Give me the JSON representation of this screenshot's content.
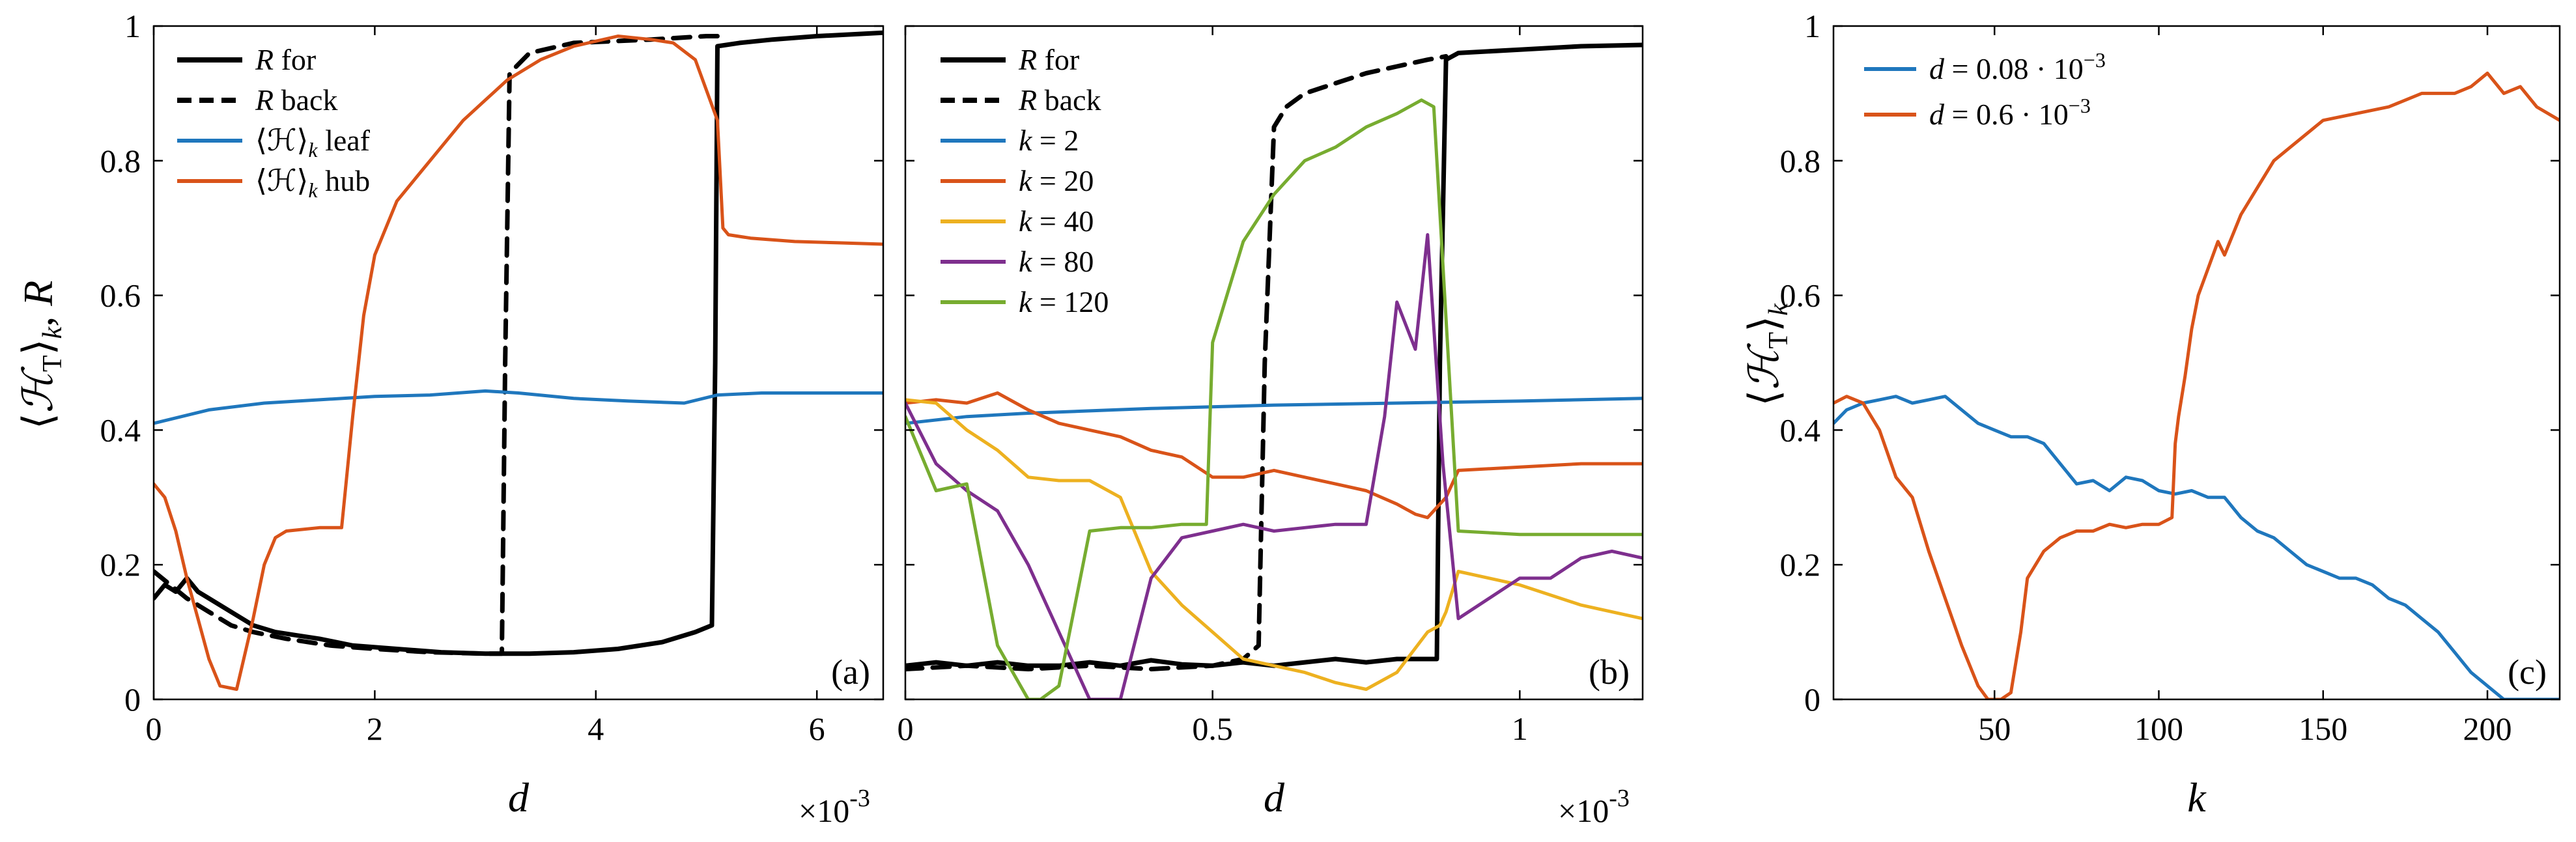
{
  "figure": {
    "description_labels": [
      "(a)",
      "(b)",
      "(c)"
    ]
  },
  "chart_data": [
    {
      "id": "a",
      "type": "line",
      "panel_label": "(a)",
      "xlabel": "d",
      "ylabel": "⟨H_T⟩_k, R",
      "x_multiplier": "×10^-3",
      "xlim": [
        0,
        6.6
      ],
      "ylim": [
        0,
        1
      ],
      "xticks": [
        0,
        2,
        4,
        6
      ],
      "xtick_labels": [
        "0",
        "2",
        "4",
        "6"
      ],
      "yticks": [
        0,
        0.2,
        0.4,
        0.6,
        0.8,
        1
      ],
      "ytick_labels": [
        "0",
        "0.2",
        "0.4",
        "0.6",
        "0.8",
        "1"
      ],
      "legend_position": "top-left",
      "series": [
        {
          "name": "R for",
          "legend_main": "R",
          "legend_rest": " for",
          "color": "#000000",
          "dash": "solid",
          "width": 7,
          "x": [
            0,
            0.1,
            0.2,
            0.3,
            0.4,
            0.5,
            0.7,
            0.9,
            1.1,
            1.3,
            1.5,
            1.8,
            2.2,
            2.6,
            3.0,
            3.4,
            3.8,
            4.2,
            4.6,
            4.9,
            5.05,
            5.08,
            5.1,
            5.3,
            5.6,
            6.0,
            6.6
          ],
          "y": [
            0.15,
            0.17,
            0.16,
            0.18,
            0.16,
            0.15,
            0.13,
            0.11,
            0.1,
            0.095,
            0.09,
            0.08,
            0.075,
            0.07,
            0.068,
            0.068,
            0.07,
            0.075,
            0.085,
            0.1,
            0.11,
            0.5,
            0.97,
            0.975,
            0.98,
            0.985,
            0.99
          ]
        },
        {
          "name": "R back",
          "legend_main": "R",
          "legend_rest": " back",
          "color": "#000000",
          "dash": "dashed",
          "width": 7,
          "x": [
            0,
            0.15,
            0.3,
            0.5,
            0.7,
            0.9,
            1.2,
            1.6,
            2.0,
            2.5,
            3.0,
            3.15,
            3.18,
            3.22,
            3.4,
            3.8,
            4.5,
            5.0,
            5.1
          ],
          "y": [
            0.19,
            0.17,
            0.15,
            0.13,
            0.11,
            0.1,
            0.09,
            0.08,
            0.075,
            0.07,
            0.068,
            0.068,
            0.5,
            0.93,
            0.96,
            0.975,
            0.98,
            0.985,
            0.985
          ]
        },
        {
          "name": "⟨H⟩k leaf",
          "legend_main": "⟨ℋ⟩",
          "legend_sub": "k",
          "legend_rest": " leaf",
          "color": "#1f77bd",
          "dash": "solid",
          "width": 5,
          "x": [
            0,
            0.5,
            1.0,
            1.5,
            2.0,
            2.5,
            3.0,
            3.3,
            3.8,
            4.3,
            4.8,
            5.1,
            5.5,
            6.0,
            6.6
          ],
          "y": [
            0.41,
            0.43,
            0.44,
            0.445,
            0.45,
            0.452,
            0.458,
            0.455,
            0.447,
            0.443,
            0.44,
            0.452,
            0.455,
            0.455,
            0.455
          ]
        },
        {
          "name": "⟨H⟩k hub",
          "legend_main": "⟨ℋ⟩",
          "legend_sub": "k",
          "legend_rest": " hub",
          "color": "#d95319",
          "dash": "solid",
          "width": 5,
          "x": [
            0,
            0.1,
            0.2,
            0.3,
            0.4,
            0.5,
            0.6,
            0.75,
            0.8,
            0.9,
            1.0,
            1.1,
            1.2,
            1.5,
            1.7,
            1.8,
            1.9,
            2.0,
            2.2,
            2.5,
            2.8,
            3.0,
            3.2,
            3.5,
            3.8,
            4.2,
            4.5,
            4.7,
            4.9,
            5.1,
            5.15,
            5.2,
            5.4,
            5.8,
            6.2,
            6.6
          ],
          "y": [
            0.32,
            0.3,
            0.25,
            0.18,
            0.12,
            0.06,
            0.02,
            0.015,
            0.05,
            0.12,
            0.2,
            0.24,
            0.25,
            0.255,
            0.255,
            0.42,
            0.57,
            0.66,
            0.74,
            0.8,
            0.86,
            0.89,
            0.92,
            0.95,
            0.97,
            0.985,
            0.98,
            0.975,
            0.95,
            0.86,
            0.7,
            0.69,
            0.685,
            0.68,
            0.678,
            0.676
          ]
        }
      ]
    },
    {
      "id": "b",
      "type": "line",
      "panel_label": "(b)",
      "xlabel": "d",
      "x_multiplier": "×10^-3",
      "xlim": [
        0,
        1.2
      ],
      "ylim": [
        0,
        1
      ],
      "xticks": [
        0,
        0.5,
        1
      ],
      "xtick_labels": [
        "0",
        "0.5",
        "1"
      ],
      "yticks": [
        0,
        0.2,
        0.4,
        0.6,
        0.8,
        1
      ],
      "legend_position": "top-left",
      "series": [
        {
          "name": "R for",
          "legend_main": "R",
          "legend_rest": " for",
          "color": "#000000",
          "dash": "solid",
          "width": 7,
          "x": [
            0,
            0.05,
            0.1,
            0.15,
            0.2,
            0.25,
            0.3,
            0.35,
            0.4,
            0.45,
            0.5,
            0.55,
            0.6,
            0.65,
            0.7,
            0.75,
            0.8,
            0.85,
            0.865,
            0.87,
            0.88,
            0.9,
            1.0,
            1.1,
            1.2
          ],
          "y": [
            0.05,
            0.055,
            0.05,
            0.055,
            0.05,
            0.05,
            0.055,
            0.05,
            0.058,
            0.052,
            0.05,
            0.055,
            0.05,
            0.055,
            0.06,
            0.055,
            0.06,
            0.06,
            0.06,
            0.5,
            0.95,
            0.96,
            0.965,
            0.97,
            0.972
          ]
        },
        {
          "name": "R back",
          "legend_main": "R",
          "legend_rest": " back",
          "color": "#000000",
          "dash": "dashed",
          "width": 7,
          "x": [
            0,
            0.1,
            0.2,
            0.3,
            0.4,
            0.5,
            0.55,
            0.575,
            0.585,
            0.6,
            0.62,
            0.65,
            0.7,
            0.75,
            0.8,
            0.85,
            0.88
          ],
          "y": [
            0.045,
            0.05,
            0.045,
            0.05,
            0.045,
            0.05,
            0.06,
            0.08,
            0.5,
            0.85,
            0.88,
            0.9,
            0.915,
            0.93,
            0.94,
            0.95,
            0.955
          ]
        },
        {
          "name": "k = 2",
          "legend_main": "k",
          "legend_rest": " = 2",
          "color": "#1f77bd",
          "dash": "solid",
          "width": 5,
          "x": [
            0,
            0.1,
            0.2,
            0.4,
            0.6,
            0.8,
            1.0,
            1.2
          ],
          "y": [
            0.41,
            0.42,
            0.425,
            0.432,
            0.437,
            0.44,
            0.443,
            0.447
          ]
        },
        {
          "name": "k = 20",
          "legend_main": "k",
          "legend_rest": " = 20",
          "color": "#d95319",
          "dash": "solid",
          "width": 5,
          "x": [
            0,
            0.05,
            0.1,
            0.15,
            0.2,
            0.25,
            0.3,
            0.35,
            0.4,
            0.45,
            0.5,
            0.55,
            0.6,
            0.65,
            0.7,
            0.75,
            0.8,
            0.83,
            0.85,
            0.88,
            0.9,
            1.0,
            1.1,
            1.2
          ],
          "y": [
            0.44,
            0.445,
            0.44,
            0.455,
            0.43,
            0.41,
            0.4,
            0.39,
            0.37,
            0.36,
            0.33,
            0.33,
            0.34,
            0.33,
            0.32,
            0.31,
            0.29,
            0.275,
            0.27,
            0.3,
            0.34,
            0.345,
            0.35,
            0.35
          ]
        },
        {
          "name": "k = 40",
          "legend_main": "k",
          "legend_rest": " = 40",
          "color": "#edb120",
          "dash": "solid",
          "width": 5,
          "x": [
            0,
            0.05,
            0.1,
            0.15,
            0.2,
            0.25,
            0.3,
            0.35,
            0.4,
            0.45,
            0.5,
            0.55,
            0.6,
            0.65,
            0.7,
            0.75,
            0.8,
            0.85,
            0.87,
            0.88,
            0.9,
            1.0,
            1.1,
            1.2
          ],
          "y": [
            0.445,
            0.44,
            0.4,
            0.37,
            0.33,
            0.325,
            0.325,
            0.3,
            0.19,
            0.14,
            0.1,
            0.06,
            0.05,
            0.04,
            0.025,
            0.015,
            0.04,
            0.1,
            0.11,
            0.13,
            0.19,
            0.17,
            0.14,
            0.12
          ]
        },
        {
          "name": "k = 80",
          "legend_main": "k",
          "legend_rest": " = 80",
          "color": "#7e2f8e",
          "dash": "solid",
          "width": 5,
          "x": [
            0,
            0.05,
            0.1,
            0.15,
            0.2,
            0.25,
            0.3,
            0.35,
            0.4,
            0.45,
            0.5,
            0.55,
            0.6,
            0.65,
            0.7,
            0.75,
            0.78,
            0.8,
            0.83,
            0.85,
            0.875,
            0.9,
            0.95,
            1.0,
            1.05,
            1.1,
            1.15,
            1.2
          ],
          "y": [
            0.44,
            0.35,
            0.31,
            0.28,
            0.2,
            0.1,
            0.0,
            0.0,
            0.18,
            0.24,
            0.25,
            0.26,
            0.25,
            0.255,
            0.26,
            0.26,
            0.42,
            0.59,
            0.52,
            0.69,
            0.35,
            0.12,
            0.15,
            0.18,
            0.18,
            0.21,
            0.22,
            0.21
          ]
        },
        {
          "name": "k = 120",
          "legend_main": "k",
          "legend_rest": " = 120",
          "color": "#77ac30",
          "dash": "solid",
          "width": 5,
          "x": [
            0,
            0.05,
            0.1,
            0.15,
            0.2,
            0.22,
            0.25,
            0.3,
            0.35,
            0.4,
            0.45,
            0.49,
            0.5,
            0.55,
            0.6,
            0.65,
            0.7,
            0.75,
            0.8,
            0.84,
            0.86,
            0.9,
            1.0,
            1.1,
            1.2
          ],
          "y": [
            0.42,
            0.31,
            0.32,
            0.08,
            0.0,
            0.0,
            0.02,
            0.25,
            0.255,
            0.255,
            0.26,
            0.26,
            0.53,
            0.68,
            0.75,
            0.8,
            0.82,
            0.85,
            0.87,
            0.89,
            0.88,
            0.25,
            0.245,
            0.245,
            0.245
          ]
        }
      ]
    },
    {
      "id": "c",
      "type": "line",
      "panel_label": "(c)",
      "xlabel": "k",
      "ylabel": "⟨H_T⟩_k",
      "xlim": [
        1,
        222
      ],
      "ylim": [
        0,
        1
      ],
      "xticks": [
        50,
        100,
        150,
        200
      ],
      "xtick_labels": [
        "50",
        "100",
        "150",
        "200"
      ],
      "yticks": [
        0,
        0.2,
        0.4,
        0.6,
        0.8,
        1
      ],
      "ytick_labels": [
        "0",
        "0.2",
        "0.4",
        "0.6",
        "0.8",
        "1"
      ],
      "legend_position": "top-left",
      "series": [
        {
          "name": "d = 0.08·10^-3",
          "legend_main": "d",
          "legend_rest": " = 0.08 · 10",
          "legend_sup": "−3",
          "color": "#1f77bd",
          "dash": "solid",
          "width": 5,
          "x": [
            1,
            5,
            10,
            15,
            20,
            25,
            30,
            35,
            40,
            45,
            50,
            55,
            60,
            65,
            70,
            75,
            80,
            85,
            90,
            95,
            100,
            105,
            110,
            115,
            120,
            125,
            130,
            135,
            140,
            145,
            150,
            155,
            160,
            165,
            170,
            175,
            180,
            185,
            190,
            195,
            200,
            205,
            210,
            222
          ],
          "y": [
            0.41,
            0.43,
            0.44,
            0.445,
            0.45,
            0.44,
            0.445,
            0.45,
            0.43,
            0.41,
            0.4,
            0.39,
            0.39,
            0.38,
            0.35,
            0.32,
            0.325,
            0.31,
            0.33,
            0.325,
            0.31,
            0.305,
            0.31,
            0.3,
            0.3,
            0.27,
            0.25,
            0.24,
            0.22,
            0.2,
            0.19,
            0.18,
            0.18,
            0.17,
            0.15,
            0.14,
            0.12,
            0.1,
            0.07,
            0.04,
            0.02,
            0.0,
            0.0,
            0.0
          ]
        },
        {
          "name": "d = 0.6·10^-3",
          "legend_main": "d",
          "legend_rest": " = 0.6 · 10",
          "legend_sup": "−3",
          "color": "#d95319",
          "dash": "solid",
          "width": 5,
          "x": [
            1,
            5,
            10,
            15,
            20,
            25,
            30,
            35,
            40,
            45,
            48,
            50,
            52,
            55,
            58,
            60,
            65,
            70,
            75,
            80,
            85,
            90,
            95,
            100,
            104,
            105,
            106,
            108,
            110,
            112,
            115,
            118,
            120,
            125,
            130,
            135,
            140,
            150,
            160,
            170,
            180,
            190,
            195,
            200,
            205,
            210,
            215,
            222
          ],
          "y": [
            0.44,
            0.45,
            0.44,
            0.4,
            0.33,
            0.3,
            0.22,
            0.15,
            0.08,
            0.02,
            0.0,
            0.0,
            0.0,
            0.01,
            0.1,
            0.18,
            0.22,
            0.24,
            0.25,
            0.25,
            0.26,
            0.255,
            0.26,
            0.26,
            0.27,
            0.38,
            0.42,
            0.48,
            0.55,
            0.6,
            0.64,
            0.68,
            0.66,
            0.72,
            0.76,
            0.8,
            0.82,
            0.86,
            0.87,
            0.88,
            0.9,
            0.9,
            0.91,
            0.93,
            0.9,
            0.91,
            0.88,
            0.86
          ]
        }
      ]
    }
  ]
}
